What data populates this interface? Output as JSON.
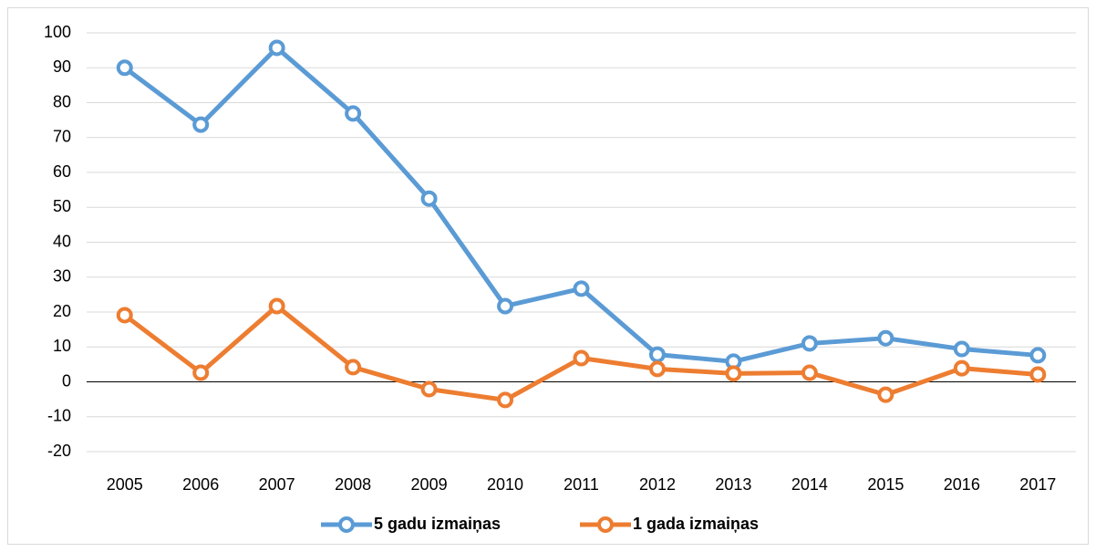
{
  "chart_data": {
    "type": "line",
    "categories": [
      "2005",
      "2006",
      "2007",
      "2008",
      "2009",
      "2010",
      "2011",
      "2012",
      "2013",
      "2014",
      "2015",
      "2016",
      "2017"
    ],
    "series": [
      {
        "name": "5 gadu izmaiņas",
        "color": "#5b9bd5",
        "values": [
          90,
          73.7,
          95.7,
          76.9,
          52.5,
          21.7,
          26.7,
          7.8,
          5.8,
          11,
          12.5,
          9.4,
          7.6
        ]
      },
      {
        "name": "1 gada izmaiņas",
        "color": "#ed7d31",
        "values": [
          19.1,
          2.6,
          21.7,
          4.2,
          -2.1,
          -5.2,
          6.8,
          3.7,
          2.4,
          2.6,
          -3.7,
          3.9,
          2.1
        ]
      }
    ],
    "ylim": [
      -20,
      100
    ],
    "yticks": [
      -20,
      -10,
      0,
      10,
      20,
      30,
      40,
      50,
      60,
      70,
      80,
      90,
      100
    ],
    "grid": true,
    "legend": "bottom"
  }
}
